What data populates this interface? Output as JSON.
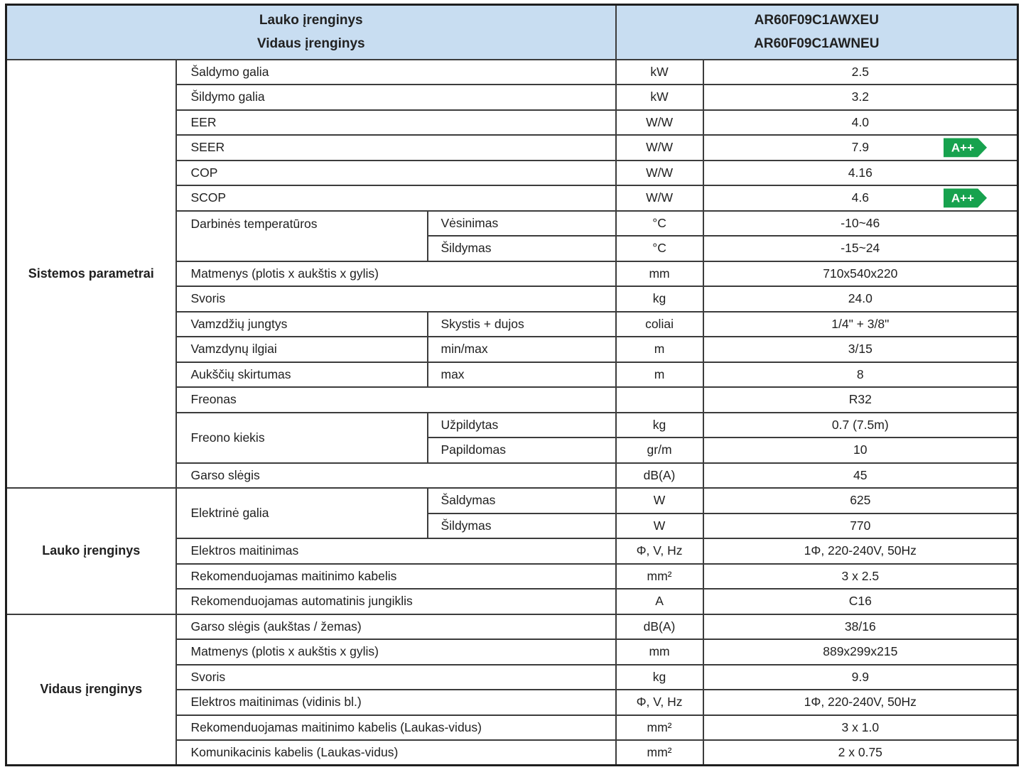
{
  "header": {
    "left": {
      "line1": "Lauko įrenginys",
      "line2": "Vidaus įrenginys"
    },
    "right": {
      "line1": "AR60F09C1AWXEU",
      "line2": "AR60F09C1AWNEU"
    }
  },
  "energy_badge_label": "A++",
  "colors": {
    "header_bg": "#C8DDF1",
    "grid_border": "#3C3C3C",
    "outer_border": "#1E1E1E",
    "badge_green": "#17A24E",
    "text": "#212121"
  },
  "sections": [
    {
      "label": "Sistemos parametrai",
      "rows": [
        {
          "param": "Šaldymo galia",
          "sub": null,
          "unit": "kW",
          "value": "2.5"
        },
        {
          "param": "Šildymo galia",
          "sub": null,
          "unit": "kW",
          "value": "3.2"
        },
        {
          "param": "EER",
          "sub": null,
          "unit": "W/W",
          "value": "4.0"
        },
        {
          "param": "SEER",
          "sub": null,
          "unit": "W/W",
          "value": "7.9",
          "badge": true
        },
        {
          "param": "COP",
          "sub": null,
          "unit": "W/W",
          "value": "4.16"
        },
        {
          "param": "SCOP",
          "sub": null,
          "unit": "W/W",
          "value": "4.6",
          "badge": true
        },
        {
          "param": "Darbinės temperatūros",
          "rowspan": 2,
          "valign_top": true,
          "sub": "Vėsinimas",
          "unit": "°C",
          "value": "-10~46"
        },
        {
          "cont": true,
          "sub": "Šildymas",
          "unit": "°C",
          "value": "-15~24"
        },
        {
          "param": "Matmenys (plotis x aukštis x gylis)",
          "sub": null,
          "unit": "mm",
          "value": "710x540x220"
        },
        {
          "param": "Svoris",
          "sub": null,
          "unit": "kg",
          "value": "24.0"
        },
        {
          "param": "Vamzdžių jungtys",
          "sub": "Skystis + dujos",
          "unit": "coliai",
          "value": "1/4\"  + 3/8\""
        },
        {
          "param": "Vamzdynų ilgiai",
          "sub": "min/max",
          "unit": "m",
          "value": "3/15"
        },
        {
          "param": "Aukščių skirtumas",
          "sub": "max",
          "unit": "m",
          "value": "8"
        },
        {
          "param": "Freonas",
          "sub": null,
          "unit": "",
          "value": "R32"
        },
        {
          "param": "Freono kiekis",
          "rowspan": 2,
          "sub": "Užpildytas",
          "unit": "kg",
          "value": "0.7 (7.5m)"
        },
        {
          "cont": true,
          "sub": "Papildomas",
          "unit": "gr/m",
          "value": "10"
        },
        {
          "param": "Garso slėgis",
          "sub": null,
          "unit": "dB(A)",
          "value": "45"
        }
      ]
    },
    {
      "label": "Lauko įrenginys",
      "rows": [
        {
          "param": "Elektrinė galia",
          "rowspan": 2,
          "sub": "Šaldymas",
          "unit": "W",
          "value": "625"
        },
        {
          "cont": true,
          "sub": "Šildymas",
          "unit": "W",
          "value": "770"
        },
        {
          "param": "Elektros maitinimas",
          "sub": null,
          "unit": "Φ, V, Hz",
          "value": "1Φ, 220-240V, 50Hz"
        },
        {
          "param": "Rekomenduojamas maitinimo kabelis",
          "sub": null,
          "unit": "mm²",
          "value": "3 x 2.5"
        },
        {
          "param": "Rekomenduojamas automatinis jungiklis",
          "sub": null,
          "unit": "A",
          "value": "C16"
        }
      ]
    },
    {
      "label": "Vidaus įrenginys",
      "rows": [
        {
          "param": "Garso slėgis (aukštas / žemas)",
          "sub": null,
          "unit": "dB(A)",
          "value": "38/16"
        },
        {
          "param": "Matmenys (plotis x aukštis x gylis)",
          "sub": null,
          "unit": "mm",
          "value": "889x299x215"
        },
        {
          "param": "Svoris",
          "sub": null,
          "unit": "kg",
          "value": "9.9"
        },
        {
          "param": "Elektros maitinimas (vidinis bl.)",
          "sub": null,
          "unit": "Φ, V, Hz",
          "value": "1Φ, 220-240V, 50Hz"
        },
        {
          "param": "Rekomenduojamas maitinimo kabelis (Laukas-vidus)",
          "sub": null,
          "unit": "mm²",
          "value": "3 x 1.0"
        },
        {
          "param": "Komunikacinis kabelis (Laukas-vidus)",
          "sub": null,
          "unit": "mm²",
          "value": "2 x 0.75"
        }
      ]
    }
  ]
}
